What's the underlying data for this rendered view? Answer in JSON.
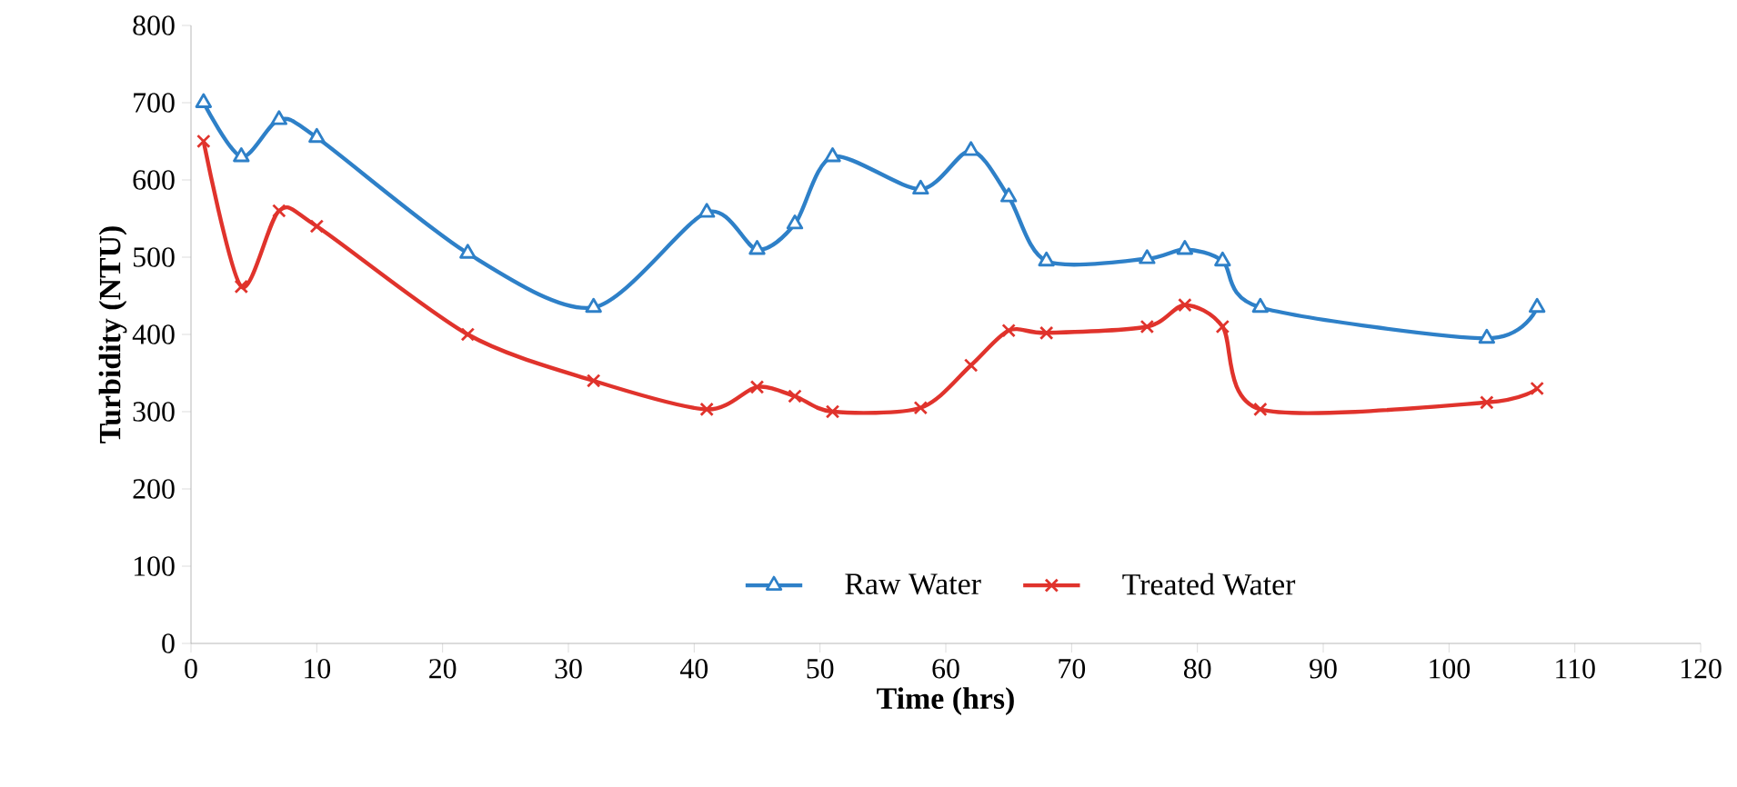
{
  "chart_data": {
    "type": "line",
    "xlabel": "Time (hrs)",
    "ylabel": "Turbidity  (NTU)",
    "xlim": [
      0,
      120
    ],
    "xticks": [
      0,
      10,
      20,
      30,
      40,
      50,
      60,
      70,
      80,
      90,
      100,
      110,
      120
    ],
    "ylim": [
      0,
      800
    ],
    "yticks": [
      0,
      100,
      200,
      300,
      400,
      500,
      600,
      700,
      800
    ],
    "legend": "bottom",
    "line_style": "solid",
    "grid": false,
    "series": [
      {
        "name": "Raw Water",
        "color": "#2e80c8",
        "marker": "triangle",
        "x": [
          1,
          4,
          7,
          10,
          22,
          32,
          41,
          45,
          48,
          51,
          58,
          62,
          65,
          68,
          76,
          79,
          82,
          85,
          103,
          107
        ],
        "values": [
          700,
          630,
          678,
          655,
          505,
          435,
          558,
          510,
          543,
          630,
          588,
          638,
          578,
          495,
          498,
          510,
          495,
          435,
          395,
          435
        ]
      },
      {
        "name": "Treated Water",
        "color": "#e0332c",
        "marker": "cross",
        "x": [
          1,
          4,
          7,
          10,
          22,
          32,
          41,
          45,
          48,
          51,
          58,
          62,
          65,
          68,
          76,
          79,
          82,
          85,
          103,
          107
        ],
        "values": [
          650,
          462,
          560,
          540,
          400,
          340,
          303,
          332,
          320,
          300,
          305,
          360,
          405,
          402,
          410,
          438,
          410,
          303,
          312,
          330
        ]
      }
    ]
  }
}
